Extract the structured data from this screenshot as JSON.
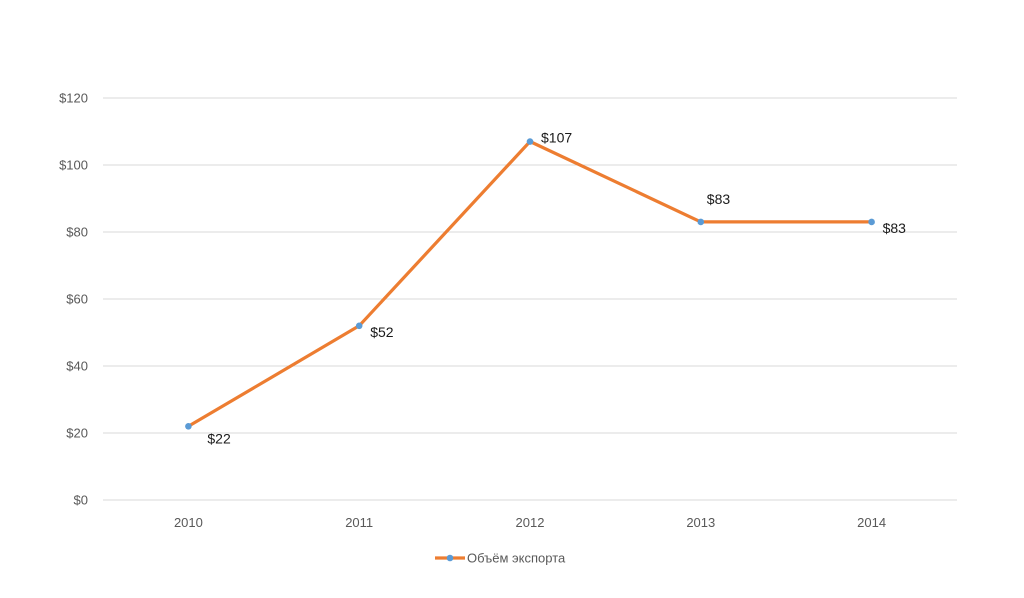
{
  "chart_data": {
    "type": "line",
    "title": "",
    "xlabel": "",
    "ylabel": "",
    "categories": [
      "2010",
      "2011",
      "2012",
      "2013",
      "2014"
    ],
    "series": [
      {
        "name": "Объём экспорта",
        "values": [
          22,
          52,
          107,
          83,
          83
        ],
        "labels": [
          "$22",
          "$52",
          "$107",
          "$83",
          "$83"
        ],
        "line_color": "#ED7D31",
        "marker_color": "#5B9BD5"
      }
    ],
    "y_ticks": [
      "$0",
      "$20",
      "$40",
      "$60",
      "$80",
      "$100",
      "$120"
    ],
    "ylim": [
      0,
      120
    ],
    "grid": true,
    "legend": "bottom",
    "grid_color": "#d9d9d9"
  }
}
